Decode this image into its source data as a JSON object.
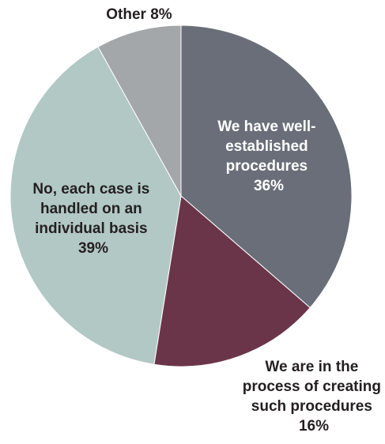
{
  "chart_data": {
    "type": "pie",
    "title": "",
    "slices": [
      {
        "label_lines": [
          "We have well-",
          "established",
          "procedures"
        ],
        "value": 36,
        "value_text": "36%",
        "color": "#696e78",
        "text_color": "#ffffff"
      },
      {
        "label_lines": [
          "We are in the",
          "process of creating",
          "such procedures"
        ],
        "value": 16,
        "value_text": "16%",
        "color": "#6b3549",
        "text_color": "#231f20"
      },
      {
        "label_lines": [
          "No, each case is",
          "handled on an",
          "individual basis"
        ],
        "value": 39,
        "value_text": "39%",
        "color": "#b2c8c5",
        "text_color": "#231f20"
      },
      {
        "label_lines": [
          "Other 8%"
        ],
        "value": 8,
        "value_text": "",
        "color": "#a3a7aa",
        "text_color": "#231f20"
      }
    ],
    "start_angle": "12 o'clock",
    "direction": "clockwise",
    "legend": "none"
  }
}
